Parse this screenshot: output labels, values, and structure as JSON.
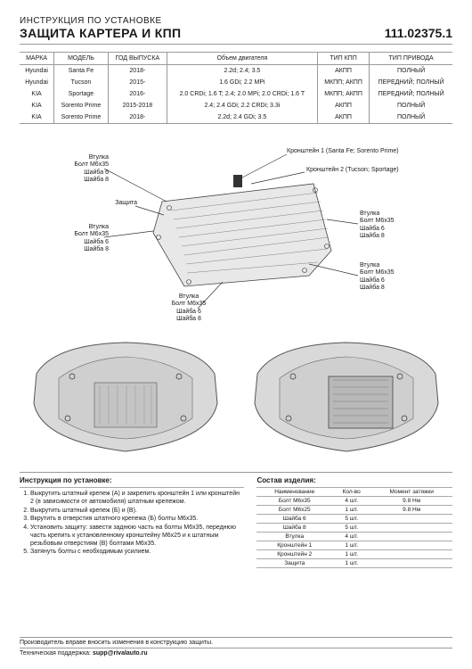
{
  "header": {
    "pretitle": "ИНСТРУКЦИЯ ПО УСТАНОВКЕ",
    "title": "ЗАЩИТА КАРТЕРА И КПП",
    "part_number": "111.02375.1"
  },
  "table": {
    "columns": [
      "МАРКА",
      "МОДЕЛЬ",
      "ГОД ВЫПУСКА",
      "Объем двигателя",
      "ТИП КПП",
      "ТИП ПРИВОДА"
    ],
    "rows": [
      [
        "Hyundai",
        "Santa Fe",
        "2018-",
        "2.2d; 2.4; 3.5",
        "АКПП",
        "ПОЛНЫЙ"
      ],
      [
        "Hyundai",
        "Tucson",
        "2015-",
        "1.6 GDi; 2.2 MPi",
        "МКПП; АКПП",
        "ПЕРЕДНИЙ; ПОЛНЫЙ"
      ],
      [
        "KIA",
        "Sportage",
        "2016-",
        "2.0 CRDi; 1.6 T; 2.4; 2.0 MPi; 2.0 CRDi; 1.6 T",
        "МКПП; АКПП",
        "ПЕРЕДНИЙ; ПОЛНЫЙ"
      ],
      [
        "KIA",
        "Sorento Prime",
        "2015-2018",
        "2.4; 2.4 GDi; 2.2 CRDi; 3.3i",
        "АКПП",
        "ПОЛНЫЙ"
      ],
      [
        "KIA",
        "Sorento Prime",
        "2018-",
        "2.2d; 2.4 GDi; 3.5",
        "АКПП",
        "ПОЛНЫЙ"
      ]
    ]
  },
  "callouts": {
    "vtulka": "Втулка",
    "bolt": "Болт М6х35",
    "shaiba6": "Шайба 6",
    "shaiba8": "Шайба 8",
    "zashita": "Защита",
    "kron1": "Кронштейн 1 (Santa Fe; Sorento Prime)",
    "kron2": "Кронштейн 2 (Tucson; Sportage)"
  },
  "instructions": {
    "title": "Инструкция по установке:",
    "steps": [
      "Выкрутить штатный крепеж (А) и закрепить кронштейн 1 или кронштейн 2 (в зависимости от автомобиля) штатным крепежом.",
      "Выкрутить штатный крепеж (Б) и (В).",
      "Вкрутить в отверстия штатного крепежа (Б) болты М6х35.",
      "Установить защиту: завести заднюю часть на болты М6х35, переднюю часть крепить к установленному кронштейну М6х25 и к штатным резьбовым отверстиям (В) болтами М6х35.",
      "Затянуть болты с необходимым усилием."
    ]
  },
  "bom": {
    "title": "Состав изделия:",
    "columns": [
      "Наименование",
      "Кол-во",
      "Момент затяжки"
    ],
    "rows": [
      [
        "Болт М6х35",
        "4 шт.",
        "9.8 Нм"
      ],
      [
        "Болт М6х25",
        "1 шт.",
        "9.8 Нм"
      ],
      [
        "Шайба 6",
        "5 шт.",
        ""
      ],
      [
        "Шайба 8",
        "5 шт.",
        ""
      ],
      [
        "Втулка",
        "4 шт.",
        ""
      ],
      [
        "Кронштейн 1",
        "1 шт.",
        ""
      ],
      [
        "Кронштейн 2",
        "1 шт.",
        ""
      ],
      [
        "Защита",
        "1 шт.",
        ""
      ]
    ]
  },
  "footer": {
    "disclaimer": "Производитель вправе вносить изменения в конструкцию защиты.",
    "support_label": "Техническая поддержка:",
    "support_value": "supp@rivalauto.ru"
  }
}
